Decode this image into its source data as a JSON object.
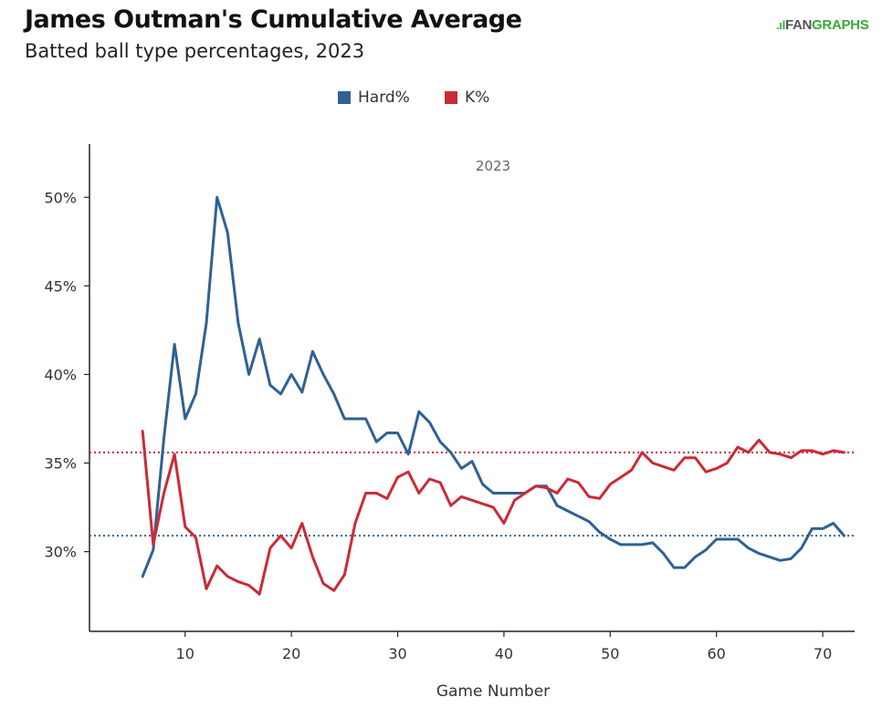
{
  "header": {
    "title": "James Outman's Cumulative Average",
    "subtitle": "Batted ball type percentages, 2023",
    "brand_fan": "FAN",
    "brand_graphs": "GRAPHS",
    "brand_mark": ".ıl"
  },
  "colors": {
    "hard": "#2f6194",
    "k": "#cc2a36",
    "axis": "#222222",
    "annotation": "#666666"
  },
  "chart_data": {
    "type": "line",
    "title": "James Outman's Cumulative Average",
    "subtitle": "Batted ball type percentages, 2023",
    "xlabel": "Game Number",
    "ylabel": "",
    "annotation": "2023",
    "xlim": [
      1,
      73
    ],
    "ylim": [
      0.255,
      0.53
    ],
    "xticks": [
      10,
      20,
      30,
      40,
      50,
      60,
      70
    ],
    "yticks": [
      0.3,
      0.35,
      0.4,
      0.45,
      0.5
    ],
    "ytick_labels": [
      "30%",
      "35%",
      "40%",
      "45%",
      "50%"
    ],
    "legend": {
      "position": "top-center"
    },
    "series": [
      {
        "name": "Hard%",
        "color": "#2f6194",
        "average": 0.309,
        "x": [
          6,
          7,
          8,
          9,
          10,
          11,
          12,
          13,
          14,
          15,
          16,
          17,
          18,
          19,
          20,
          21,
          22,
          23,
          24,
          25,
          26,
          27,
          28,
          29,
          30,
          31,
          32,
          33,
          34,
          35,
          36,
          37,
          38,
          39,
          40,
          41,
          42,
          43,
          44,
          45,
          46,
          47,
          48,
          49,
          50,
          51,
          52,
          53,
          54,
          55,
          56,
          57,
          58,
          59,
          60,
          61,
          62,
          63,
          64,
          65,
          66,
          67,
          68,
          69,
          70,
          71,
          72
        ],
        "y": [
          0.286,
          0.301,
          0.364,
          0.417,
          0.375,
          0.389,
          0.429,
          0.5,
          0.48,
          0.429,
          0.4,
          0.42,
          0.394,
          0.389,
          0.4,
          0.39,
          0.413,
          0.4,
          0.389,
          0.375,
          0.375,
          0.375,
          0.362,
          0.367,
          0.367,
          0.355,
          0.379,
          0.373,
          0.362,
          0.356,
          0.347,
          0.351,
          0.338,
          0.333,
          0.333,
          0.333,
          0.333,
          0.337,
          0.337,
          0.326,
          0.323,
          0.32,
          0.317,
          0.311,
          0.307,
          0.304,
          0.304,
          0.304,
          0.305,
          0.299,
          0.291,
          0.291,
          0.297,
          0.301,
          0.307,
          0.307,
          0.307,
          0.302,
          0.299,
          0.297,
          0.295,
          0.296,
          0.302,
          0.313,
          0.313,
          0.316,
          0.309
        ]
      },
      {
        "name": "K%",
        "color": "#cc2a36",
        "average": 0.356,
        "x": [
          6,
          7,
          8,
          9,
          10,
          11,
          12,
          13,
          14,
          15,
          16,
          17,
          18,
          19,
          20,
          21,
          22,
          23,
          24,
          25,
          26,
          27,
          28,
          29,
          30,
          31,
          32,
          33,
          34,
          35,
          36,
          37,
          38,
          39,
          40,
          41,
          42,
          43,
          44,
          45,
          46,
          47,
          48,
          49,
          50,
          51,
          52,
          53,
          54,
          55,
          56,
          57,
          58,
          59,
          60,
          61,
          62,
          63,
          64,
          65,
          66,
          67,
          68,
          69,
          70,
          71,
          72
        ],
        "y": [
          0.368,
          0.304,
          0.333,
          0.355,
          0.314,
          0.308,
          0.279,
          0.292,
          0.286,
          0.283,
          0.281,
          0.276,
          0.302,
          0.309,
          0.302,
          0.316,
          0.297,
          0.282,
          0.278,
          0.287,
          0.316,
          0.333,
          0.333,
          0.33,
          0.342,
          0.345,
          0.333,
          0.341,
          0.339,
          0.326,
          0.331,
          0.329,
          0.327,
          0.325,
          0.316,
          0.329,
          0.333,
          0.337,
          0.336,
          0.333,
          0.341,
          0.339,
          0.331,
          0.33,
          0.338,
          0.342,
          0.346,
          0.356,
          0.35,
          0.348,
          0.346,
          0.353,
          0.353,
          0.345,
          0.347,
          0.35,
          0.359,
          0.356,
          0.363,
          0.356,
          0.355,
          0.353,
          0.357,
          0.357,
          0.355,
          0.357,
          0.356
        ]
      }
    ]
  }
}
